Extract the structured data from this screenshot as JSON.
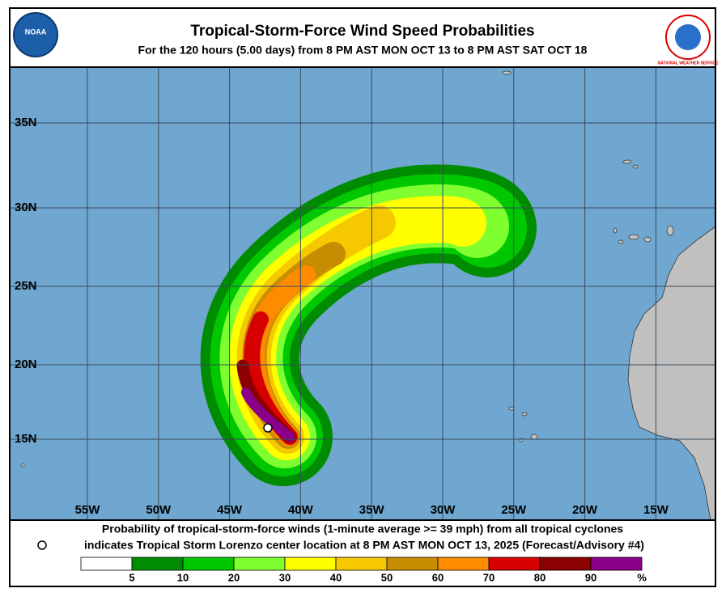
{
  "header": {
    "title": "Tropical-Storm-Force Wind Speed Probabilities",
    "subtitle": "For the 120 hours (5.00 days) from 8 PM AST MON OCT 13 to 8 PM AST SAT OCT 18"
  },
  "logos": {
    "left": "NOAA",
    "right": "NATIONAL WEATHER SERVICE"
  },
  "map": {
    "lat_labels": [
      "35N",
      "30N",
      "25N",
      "20N",
      "15N"
    ],
    "lon_labels": [
      "55W",
      "50W",
      "45W",
      "40W",
      "35W",
      "30W",
      "25W",
      "20W",
      "15W"
    ]
  },
  "footer": {
    "line1": "Probability of tropical-storm-force winds (1-minute average >= 39 mph) from all tropical cyclones",
    "line2": "indicates Tropical Storm Lorenzo center location at 8 PM AST MON OCT 13, 2025 (Forecast/Advisory #4)",
    "legend": {
      "labels": [
        "5",
        "10",
        "20",
        "30",
        "40",
        "50",
        "60",
        "70",
        "80",
        "90",
        "%"
      ],
      "colors": [
        "#ffffff",
        "#008c00",
        "#00c800",
        "#80ff30",
        "#ffff00",
        "#f5c800",
        "#c88c00",
        "#ff8c00",
        "#d70000",
        "#8b0000",
        "#8b008b"
      ]
    }
  }
}
